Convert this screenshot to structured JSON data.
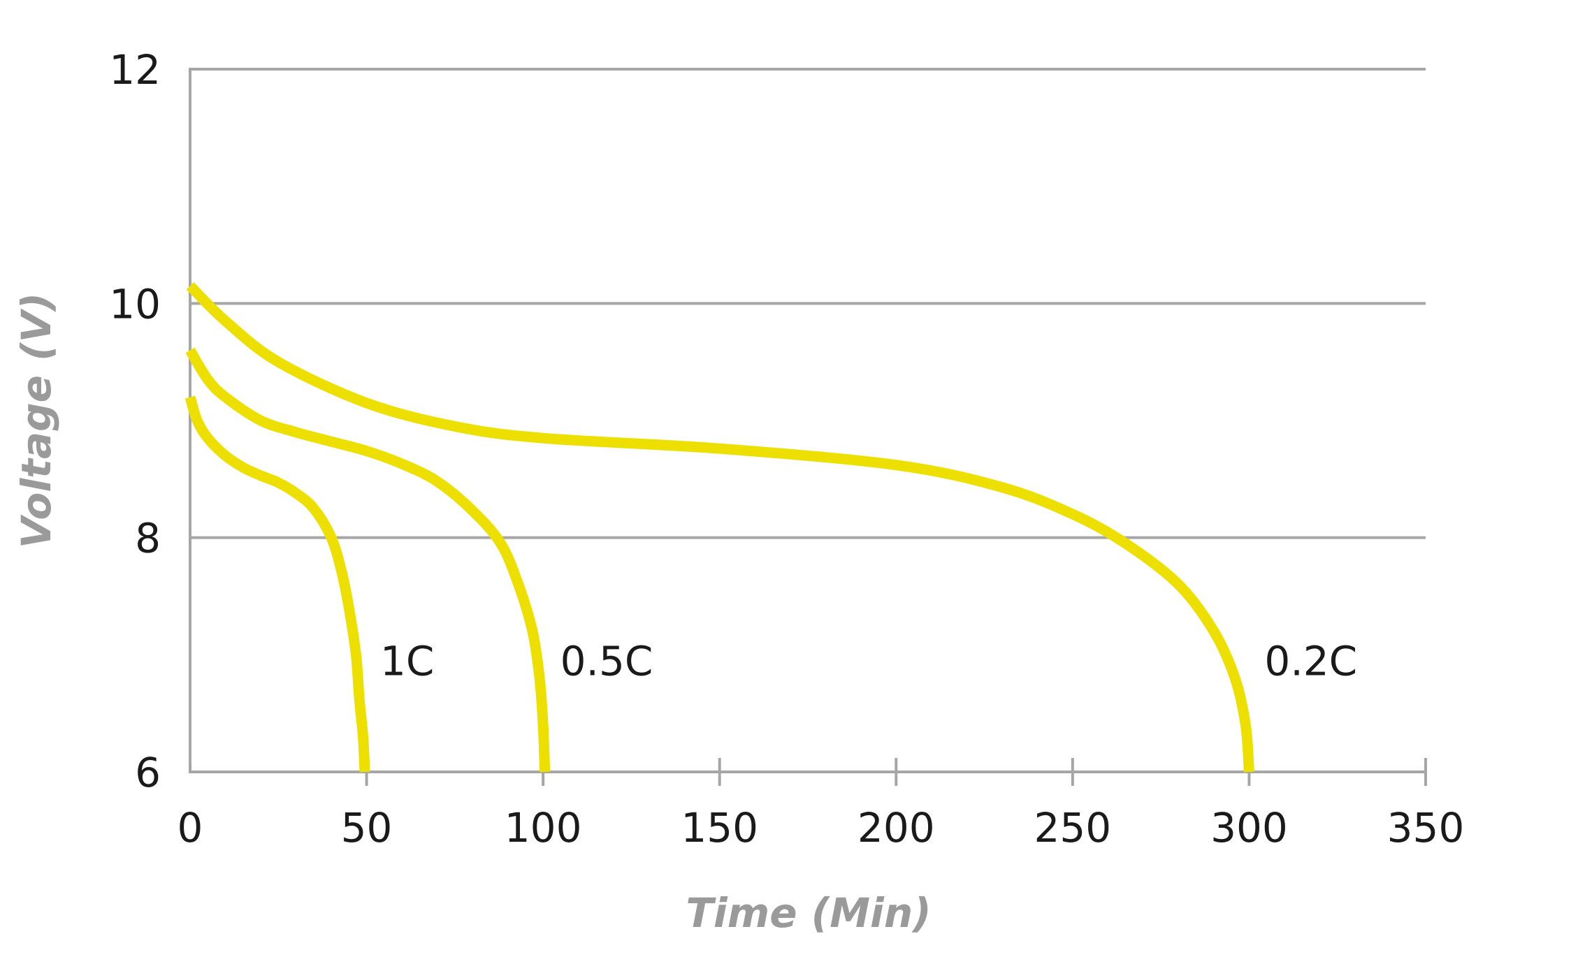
{
  "chart_data": {
    "type": "line",
    "xlabel": "Time (Min)",
    "ylabel": "Voltage (V)",
    "xlim": [
      0,
      350
    ],
    "ylim": [
      6,
      12
    ],
    "xticks": [
      0,
      50,
      100,
      150,
      200,
      250,
      300,
      350
    ],
    "yticks": [
      6,
      8,
      10,
      12
    ],
    "grid": "horizontal",
    "line_color": "#ede000",
    "grid_color": "#a6a6a6",
    "series": [
      {
        "name": "1C",
        "points": [
          [
            0,
            9.2
          ],
          [
            2,
            9.0
          ],
          [
            5,
            8.85
          ],
          [
            10,
            8.7
          ],
          [
            15,
            8.6
          ],
          [
            20,
            8.53
          ],
          [
            25,
            8.47
          ],
          [
            30,
            8.38
          ],
          [
            35,
            8.25
          ],
          [
            40,
            8.0
          ],
          [
            43,
            7.7
          ],
          [
            45,
            7.4
          ],
          [
            47,
            7.0
          ],
          [
            48,
            6.6
          ],
          [
            49,
            6.3
          ],
          [
            49.5,
            6.0
          ]
        ]
      },
      {
        "name": "0.5C",
        "points": [
          [
            0,
            9.6
          ],
          [
            5,
            9.35
          ],
          [
            10,
            9.2
          ],
          [
            20,
            9.0
          ],
          [
            30,
            8.9
          ],
          [
            40,
            8.82
          ],
          [
            50,
            8.74
          ],
          [
            60,
            8.63
          ],
          [
            70,
            8.48
          ],
          [
            80,
            8.23
          ],
          [
            88,
            7.95
          ],
          [
            93,
            7.6
          ],
          [
            97,
            7.2
          ],
          [
            99,
            6.8
          ],
          [
            100,
            6.4
          ],
          [
            100.5,
            6.0
          ]
        ]
      },
      {
        "name": "0.2C",
        "points": [
          [
            0,
            10.15
          ],
          [
            10,
            9.85
          ],
          [
            25,
            9.5
          ],
          [
            50,
            9.15
          ],
          [
            75,
            8.95
          ],
          [
            100,
            8.85
          ],
          [
            150,
            8.76
          ],
          [
            200,
            8.62
          ],
          [
            230,
            8.43
          ],
          [
            250,
            8.2
          ],
          [
            265,
            7.95
          ],
          [
            280,
            7.6
          ],
          [
            290,
            7.2
          ],
          [
            296,
            6.8
          ],
          [
            299,
            6.4
          ],
          [
            300,
            6.0
          ]
        ]
      }
    ]
  }
}
